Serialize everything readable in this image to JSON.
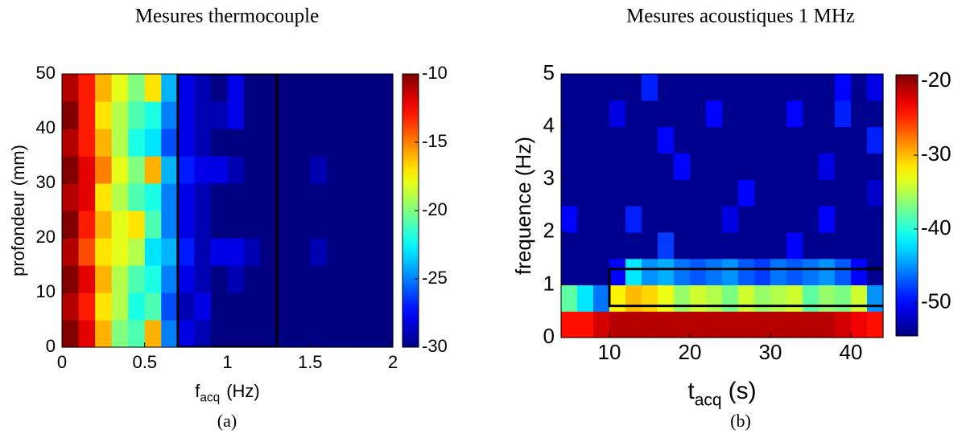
{
  "chart_data": [
    {
      "type": "heatmap",
      "title": "Mesures thermocouple",
      "caption": "(a)",
      "xlabel": "f",
      "xlabel_sub": "acq",
      "xlabel_unit": "(Hz)",
      "ylabel": "profondeur (mm)",
      "xlim": [
        0,
        2
      ],
      "ylim": [
        0,
        50
      ],
      "clim": [
        -30,
        -10
      ],
      "xticks": [
        0,
        0.5,
        1,
        1.5,
        2
      ],
      "yticks": [
        0,
        10,
        20,
        30,
        40,
        50
      ],
      "cticks": [
        -10,
        -15,
        -20,
        -25,
        -30
      ],
      "colormap": "jet",
      "boxes": [
        {
          "x": [
            0.7,
            1.3
          ],
          "y": [
            0,
            50
          ]
        }
      ],
      "z": [
        [
          -10,
          -12,
          -16,
          -20,
          -21,
          -16,
          -25,
          -28,
          -29,
          -30,
          -30,
          -30,
          -30,
          -30,
          -30,
          -30,
          -30,
          -30,
          -30,
          -30
        ],
        [
          -11,
          -13,
          -17,
          -19,
          -22,
          -21,
          -26,
          -29,
          -28,
          -30,
          -30,
          -30,
          -30,
          -30,
          -30,
          -30,
          -30,
          -30,
          -30,
          -30
        ],
        [
          -10,
          -12,
          -16,
          -19,
          -21,
          -22,
          -25,
          -28,
          -29,
          -30,
          -29,
          -30,
          -30,
          -30,
          -30,
          -30,
          -30,
          -30,
          -30,
          -30
        ],
        [
          -11,
          -14,
          -17,
          -18,
          -19,
          -23,
          -24,
          -27,
          -29,
          -28,
          -28,
          -29,
          -30,
          -30,
          -30,
          -29,
          -30,
          -30,
          -30,
          -30
        ],
        [
          -10,
          -13,
          -16,
          -18,
          -17,
          -21,
          -25,
          -28,
          -29,
          -30,
          -30,
          -30,
          -30,
          -30,
          -30,
          -30,
          -30,
          -30,
          -30,
          -30
        ],
        [
          -11,
          -12,
          -17,
          -19,
          -21,
          -22,
          -25,
          -28,
          -29,
          -30,
          -30,
          -30,
          -30,
          -30,
          -30,
          -30,
          -30,
          -30,
          -30,
          -30
        ],
        [
          -10,
          -12,
          -15,
          -18,
          -20,
          -16,
          -24,
          -27,
          -28,
          -28,
          -29,
          -30,
          -30,
          -30,
          -30,
          -29,
          -30,
          -30,
          -30,
          -30
        ],
        [
          -11,
          -13,
          -16,
          -19,
          -22,
          -23,
          -26,
          -28,
          -29,
          -30,
          -30,
          -30,
          -30,
          -30,
          -30,
          -30,
          -30,
          -30,
          -30,
          -30
        ],
        [
          -10,
          -13,
          -17,
          -19,
          -21,
          -22,
          -25,
          -28,
          -29,
          -29,
          -28,
          -30,
          -30,
          -30,
          -30,
          -30,
          -30,
          -30,
          -30,
          -30
        ],
        [
          -11,
          -13,
          -16,
          -18,
          -20,
          -17,
          -24,
          -28,
          -29,
          -30,
          -28,
          -30,
          -30,
          -30,
          -30,
          -30,
          -30,
          -30,
          -30,
          -30
        ]
      ]
    },
    {
      "type": "heatmap",
      "title": "Mesures acoustiques 1 MHz",
      "caption": "(b)",
      "xlabel": "t",
      "xlabel_sub": "acq",
      "xlabel_unit": "(s)",
      "ylabel": "frequence (Hz)",
      "xlim": [
        4,
        44
      ],
      "ylim": [
        0,
        5
      ],
      "clim": [
        -54.5,
        -19.1
      ],
      "xticks": [
        10,
        20,
        30,
        40
      ],
      "yticks": [
        0,
        1,
        2,
        3,
        4,
        5
      ],
      "cticks": [
        -20,
        -30,
        -40,
        -50
      ],
      "colormap": "jet",
      "boxes": [
        {
          "x": [
            10,
            45
          ],
          "y": [
            0.6,
            1.3
          ]
        }
      ],
      "z": [
        [
          -24,
          -24,
          -22,
          -21,
          -21,
          -21,
          -21,
          -21,
          -21,
          -21,
          -21,
          -21,
          -21,
          -21,
          -21,
          -21,
          -21,
          -22,
          -23,
          -24
        ],
        [
          -38,
          -42,
          -46,
          -32,
          -30,
          -31,
          -33,
          -36,
          -34,
          -35,
          -37,
          -34,
          -36,
          -35,
          -34,
          -38,
          -36,
          -37,
          -34,
          -45
        ],
        [
          -54,
          -54,
          -54,
          -50,
          -42,
          -45,
          -44,
          -46,
          -47,
          -46,
          -45,
          -47,
          -48,
          -46,
          -47,
          -46,
          -45,
          -47,
          -50,
          -54
        ],
        [
          -54,
          -54,
          -54,
          -54,
          -54,
          -54,
          -48,
          -54,
          -54,
          -54,
          -54,
          -54,
          -54,
          -54,
          -50,
          -54,
          -54,
          -54,
          -54,
          -54
        ],
        [
          -50,
          -54,
          -54,
          -54,
          -49,
          -54,
          -54,
          -54,
          -54,
          -54,
          -51,
          -54,
          -54,
          -54,
          -54,
          -54,
          -50,
          -54,
          -54,
          -54
        ],
        [
          -54,
          -54,
          -54,
          -54,
          -54,
          -54,
          -54,
          -54,
          -54,
          -54,
          -54,
          -50,
          -54,
          -54,
          -54,
          -54,
          -54,
          -54,
          -54,
          -52
        ],
        [
          -54,
          -54,
          -54,
          -54,
          -54,
          -54,
          -54,
          -50,
          -54,
          -54,
          -54,
          -54,
          -54,
          -54,
          -54,
          -54,
          -51,
          -54,
          -54,
          -54
        ],
        [
          -54,
          -54,
          -54,
          -54,
          -54,
          -54,
          -50,
          -54,
          -54,
          -54,
          -54,
          -54,
          -54,
          -54,
          -54,
          -54,
          -54,
          -54,
          -54,
          -49
        ],
        [
          -54,
          -54,
          -54,
          -51,
          -54,
          -54,
          -54,
          -54,
          -54,
          -50,
          -54,
          -54,
          -54,
          -54,
          -50,
          -54,
          -54,
          -49,
          -54,
          -54
        ],
        [
          -54,
          -54,
          -54,
          -54,
          -54,
          -49,
          -54,
          -54,
          -54,
          -54,
          -54,
          -54,
          -54,
          -54,
          -54,
          -54,
          -54,
          -50,
          -54,
          -51
        ]
      ]
    }
  ]
}
